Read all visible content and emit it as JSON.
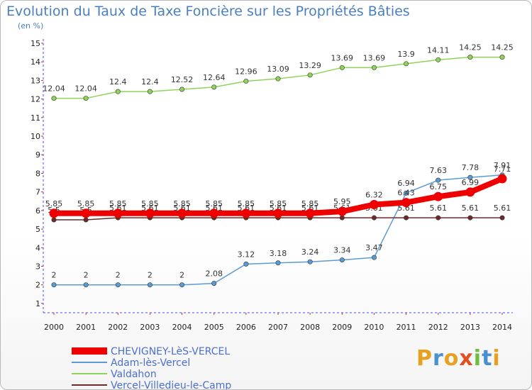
{
  "title": "Evolution du Taux de Taxe Foncière sur les Propriétés Bâties",
  "subtitle": "(en %)",
  "logo": "Proxiti",
  "chart_data": {
    "type": "line",
    "title": "Evolution du Taux de Taxe Foncière sur les Propriétés Bâties",
    "ylabel": "(en %)",
    "x": [
      2000,
      2001,
      2002,
      2003,
      2004,
      2005,
      2006,
      2007,
      2008,
      2009,
      2010,
      2011,
      2012,
      2013,
      2014
    ],
    "xlabels": [
      "2000",
      "2001",
      "2002",
      "2003",
      "2004",
      "2005",
      "2006",
      "2007",
      "2008",
      "2009",
      "2010",
      "2011",
      "2012",
      "2013",
      "2014"
    ],
    "ylim": [
      1,
      15
    ],
    "yticks": [
      1,
      2,
      3,
      4,
      5,
      6,
      7,
      8,
      9,
      10,
      11,
      12,
      13,
      14,
      15
    ],
    "grid": false,
    "legend_placement": "bottom-left",
    "series": [
      {
        "name": "Valdahon",
        "color": "#8ed45a",
        "values": [
          12.04,
          12.04,
          12.4,
          12.4,
          12.52,
          12.64,
          12.96,
          13.09,
          13.29,
          13.69,
          13.69,
          13.9,
          14.11,
          14.25,
          14.25
        ],
        "labels": [
          "12.04",
          "12.04",
          "12.4",
          "12.4",
          "12.52",
          "12.64",
          "12.96",
          "13.09",
          "13.29",
          "13.69",
          "13.69",
          "13.9",
          "14.11",
          "14.25",
          "14.25"
        ]
      },
      {
        "name": "Adam-lès-Vercel",
        "color": "#5b9bd5",
        "values": [
          2,
          2,
          2,
          2,
          2,
          2.08,
          3.12,
          3.18,
          3.24,
          3.34,
          3.47,
          6.94,
          7.63,
          7.78,
          7.91
        ],
        "labels": [
          "2",
          "2",
          "2",
          "2",
          "2",
          "2.08",
          "3.12",
          "3.18",
          "3.24",
          "3.34",
          "3.47",
          "6.94",
          "7.63",
          "7.78",
          "7.91"
        ]
      },
      {
        "name": "Vercel-Villedieu-le-Camp",
        "color": "#6b2b2b",
        "values": [
          5.5,
          5.5,
          5.61,
          5.61,
          5.61,
          5.61,
          5.61,
          5.61,
          5.61,
          5.61,
          5.61,
          5.61,
          5.61,
          5.61,
          5.61
        ],
        "labels": [
          "5.5",
          "5.5",
          "5.61",
          "5.61",
          "5.61",
          "5.61",
          "5.61",
          "5.61",
          "5.61",
          "5.61",
          "5.61",
          "5.61",
          "5.61",
          "5.61",
          "5.61"
        ]
      },
      {
        "name": "CHEVIGNEY-LèS-VERCEL",
        "color": "#ee0000",
        "values": [
          5.85,
          5.85,
          5.85,
          5.85,
          5.85,
          5.85,
          5.85,
          5.85,
          5.85,
          5.95,
          6.32,
          6.43,
          6.75,
          6.99,
          7.71
        ],
        "labels": [
          "5.85",
          "5.85",
          "5.85",
          "5.85",
          "5.85",
          "5.85",
          "5.85",
          "5.85",
          "5.85",
          "5.95",
          "6.32",
          "6.43",
          "6.75",
          "6.99",
          "7.71"
        ]
      }
    ],
    "legend": [
      {
        "name": "CHEVIGNEY-LèS-VERCEL",
        "color": "#ee0000",
        "thick": true
      },
      {
        "name": "Adam-lès-Vercel",
        "color": "#5b9bd5",
        "thick": false
      },
      {
        "name": "Valdahon",
        "color": "#8ed45a",
        "thick": false
      },
      {
        "name": "Vercel-Villedieu-le-Camp",
        "color": "#6b2b2b",
        "thick": false
      }
    ]
  }
}
